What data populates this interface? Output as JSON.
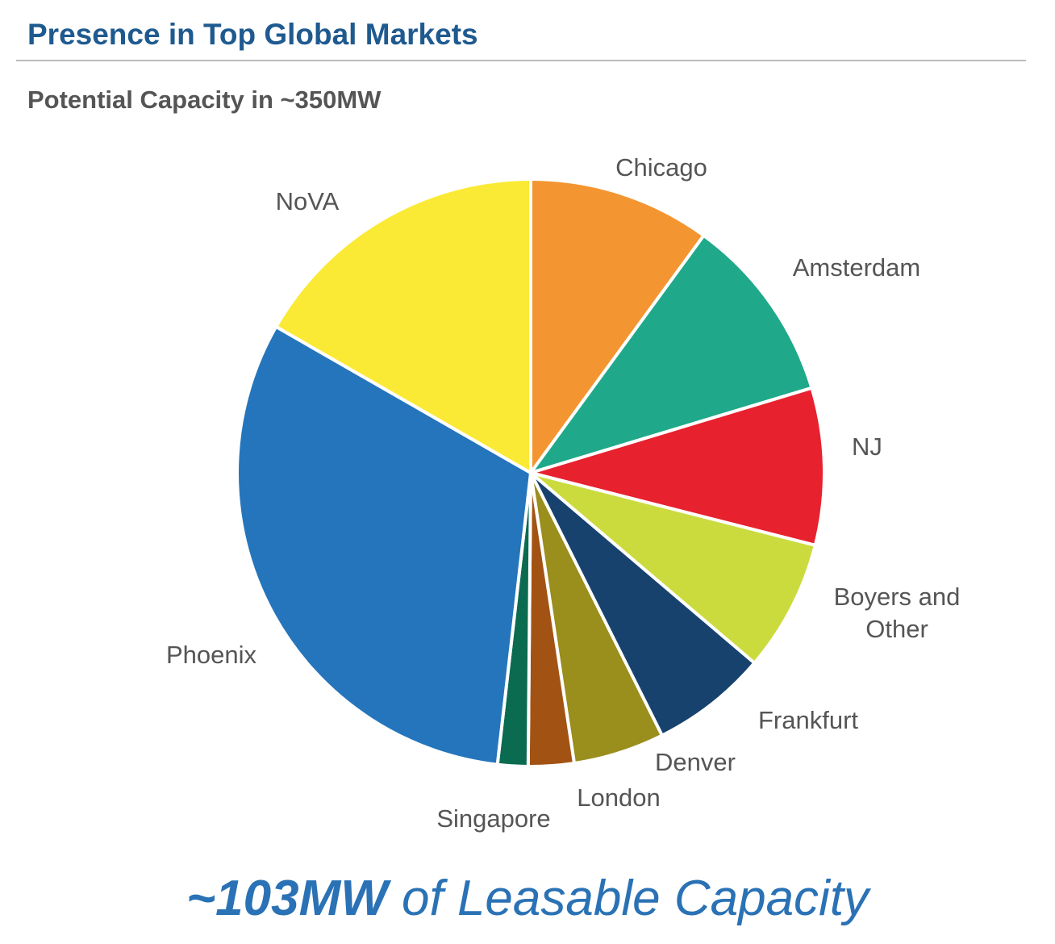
{
  "header": {
    "title": "Presence in Top Global Markets",
    "subtitle": "Potential Capacity in ~350MW"
  },
  "footer": {
    "emphasis": "~103MW",
    "rest": " of Leasable Capacity"
  },
  "chart_data": {
    "type": "pie",
    "title": "Potential Capacity in ~350MW",
    "unit": "MW (approx.)",
    "start": "12 o'clock, clockwise",
    "slices": [
      {
        "label": "Chicago",
        "lines": [
          "Chicago"
        ],
        "value": 36,
        "color": "#F39530"
      },
      {
        "label": "Amsterdam",
        "lines": [
          "Amsterdam"
        ],
        "value": 37,
        "color": "#1FA98A"
      },
      {
        "label": "NJ",
        "lines": [
          "NJ"
        ],
        "value": 31,
        "color": "#E8212E"
      },
      {
        "label": "Boyers and Other",
        "lines": [
          "Boyers and",
          "Other"
        ],
        "value": 26,
        "color": "#CBDB3E"
      },
      {
        "label": "Frankfurt",
        "lines": [
          "Frankfurt"
        ],
        "value": 23,
        "color": "#17426E"
      },
      {
        "label": "Denver",
        "lines": [
          "Denver"
        ],
        "value": 18,
        "color": "#9A8E1C"
      },
      {
        "label": "London",
        "lines": [
          "London"
        ],
        "value": 9,
        "color": "#A25313"
      },
      {
        "label": "Singapore",
        "lines": [
          "Singapore"
        ],
        "value": 6,
        "color": "#0B6B50"
      },
      {
        "label": "Phoenix",
        "lines": [
          "Phoenix"
        ],
        "value": 113,
        "color": "#2575BC"
      },
      {
        "label": "NoVA",
        "lines": [
          "NoVA"
        ],
        "value": 60,
        "color": "#FBEA35"
      }
    ]
  }
}
